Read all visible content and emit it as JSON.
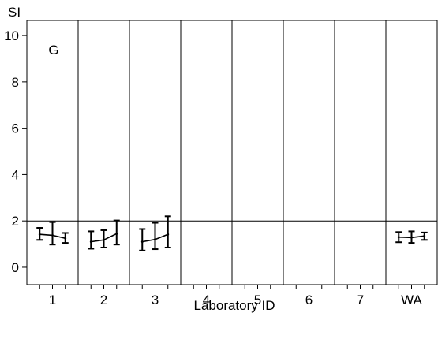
{
  "chart_data": {
    "type": "line",
    "panel_label": "G",
    "ylabel": "SI",
    "xlabel": "Laboratory ID",
    "ylim": [
      -0.75,
      10.65
    ],
    "yticks": [
      0,
      2,
      4,
      6,
      8,
      10
    ],
    "reference_line": 2,
    "groups": [
      "1",
      "2",
      "3",
      "4",
      "5",
      "6",
      "7",
      "WA"
    ],
    "series": [
      {
        "group": "1",
        "points": [
          {
            "mean": 1.42,
            "lower": 1.18,
            "upper": 1.7
          },
          {
            "mean": 1.38,
            "lower": 0.98,
            "upper": 1.95
          },
          {
            "mean": 1.25,
            "lower": 1.05,
            "upper": 1.48
          }
        ]
      },
      {
        "group": "2",
        "points": [
          {
            "mean": 1.1,
            "lower": 0.8,
            "upper": 1.55
          },
          {
            "mean": 1.18,
            "lower": 0.85,
            "upper": 1.6
          },
          {
            "mean": 1.45,
            "lower": 0.98,
            "upper": 2.02
          }
        ]
      },
      {
        "group": "3",
        "points": [
          {
            "mean": 1.1,
            "lower": 0.72,
            "upper": 1.65
          },
          {
            "mean": 1.2,
            "lower": 0.78,
            "upper": 1.92
          },
          {
            "mean": 1.42,
            "lower": 0.85,
            "upper": 2.2
          }
        ]
      },
      {
        "group": "4",
        "points": []
      },
      {
        "group": "5",
        "points": []
      },
      {
        "group": "6",
        "points": []
      },
      {
        "group": "7",
        "points": []
      },
      {
        "group": "WA",
        "points": [
          {
            "mean": 1.3,
            "lower": 1.08,
            "upper": 1.52
          },
          {
            "mean": 1.28,
            "lower": 1.05,
            "upper": 1.55
          },
          {
            "mean": 1.35,
            "lower": 1.18,
            "upper": 1.5
          }
        ]
      }
    ]
  }
}
